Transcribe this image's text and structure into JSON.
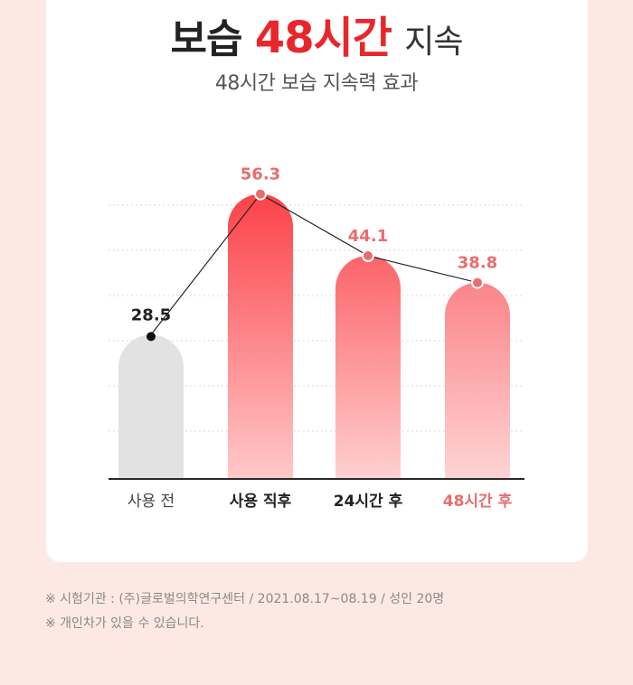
{
  "header": {
    "title_prefix": "보습",
    "title_accent": "48시간",
    "title_suffix": "지속",
    "subtitle": "48시간 보습 지속력 효과"
  },
  "colors": {
    "accent": "#e8262c",
    "bar_gray": "#e2e2e2",
    "bar_red": "#fb4a4d",
    "label_red": "#e96d6d"
  },
  "chart_data": {
    "type": "bar",
    "title": "48시간 보습 지속력 효과",
    "categories": [
      "사용 전",
      "사용 직후",
      "24시간 후",
      "48시간 후"
    ],
    "values": [
      28.5,
      56.3,
      44.1,
      38.8
    ],
    "value_labels": [
      "28.5",
      "56.3",
      "44.1",
      "38.8"
    ],
    "overlay": "line",
    "grid": true,
    "ylim": [
      0,
      60
    ]
  },
  "footnotes": [
    "※ 시험기관 : (주)글로벌의학연구센터 / 2021.08.17~08.19 / 성인 20명",
    "※ 개인차가 있을 수 있습니다."
  ]
}
